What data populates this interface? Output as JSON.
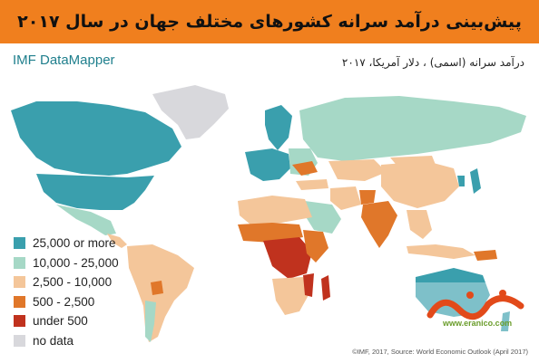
{
  "header": {
    "title": "پیش‌بینی درآمد سرانه کشورهای مختلف جهان در سال ۲۰۱۷",
    "background": "#f07f1e"
  },
  "brand": "IMF DataMapper",
  "subtitle": "درآمد سرانه (اسمی) ، دلار آمریکا، ۲۰۱۷",
  "legend": {
    "items": [
      {
        "label": "25,000 or more",
        "color": "#3a9fad"
      },
      {
        "label": "10,000 - 25,000",
        "color": "#a6d8c6"
      },
      {
        "label": "2,500 - 10,000",
        "color": "#f4c69a"
      },
      {
        "label": "500 - 2,500",
        "color": "#e0772a"
      },
      {
        "label": "under 500",
        "color": "#c0321e"
      },
      {
        "label": "no data",
        "color": "#d8d8dc"
      }
    ]
  },
  "watermark": {
    "url": "www.eranico.com"
  },
  "footer": "©IMF, 2017, Source: World Economic Outlook (April 2017)"
}
